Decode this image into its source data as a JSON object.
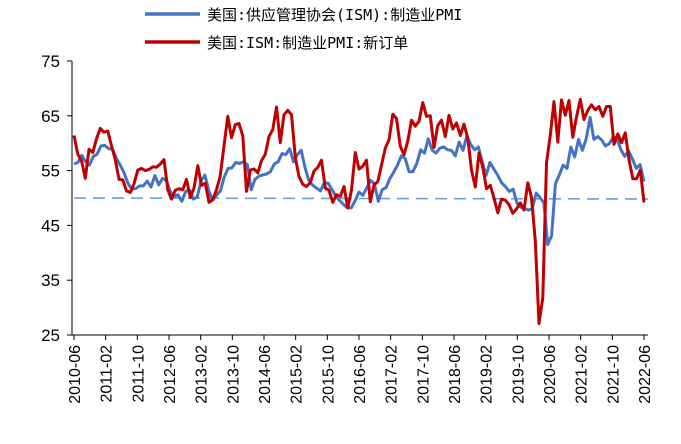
{
  "chart_data": {
    "type": "line",
    "title": "",
    "xlabel": "",
    "ylabel": "",
    "ylim": [
      25,
      75
    ],
    "yticks": [
      25,
      35,
      45,
      55,
      65,
      75
    ],
    "x_tick_labels": [
      "2010-06",
      "2011-02",
      "2011-10",
      "2012-06",
      "2013-02",
      "2013-10",
      "2014-06",
      "2015-02",
      "2015-10",
      "2016-06",
      "2017-02",
      "2017-10",
      "2018-06",
      "2019-02",
      "2019-10",
      "2020-06",
      "2021-02",
      "2021-10",
      "2022-06"
    ],
    "x_start": "2010-06",
    "x_end": "2022-06",
    "reference_line": {
      "value": 50,
      "style": "dashed",
      "color": "#6699cc"
    },
    "legend_position": "top",
    "series": [
      {
        "name": "美国:供应管理协会(ISM):制造业PMI",
        "color": "#4472C4",
        "values": [
          56.2,
          56.5,
          57.8,
          56.6,
          56.0,
          57.6,
          58.0,
          59.5,
          59.6,
          59.0,
          58.9,
          57.2,
          56.0,
          54.6,
          52.7,
          51.6,
          51.7,
          52.2,
          52.2,
          53.1,
          52.0,
          54.1,
          52.4,
          53.6,
          53.2,
          51.2,
          50.3,
          50.6,
          49.4,
          51.2,
          51.5,
          49.8,
          50.2,
          53.1,
          54.2,
          51.3,
          49.6,
          50.5,
          51.3,
          53.8,
          55.4,
          55.5,
          56.5,
          56.3,
          56.6,
          56.1,
          51.5,
          53.4,
          54.0,
          54.2,
          54.4,
          54.8,
          56.2,
          56.6,
          58.1,
          57.9,
          59.0,
          56.6,
          57.9,
          58.7,
          55.5,
          53.2,
          52.3,
          51.8,
          51.3,
          52.8,
          52.7,
          51.5,
          50.3,
          49.5,
          48.8,
          48.2,
          48.2,
          49.5,
          51.1,
          50.5,
          51.8,
          53.2,
          52.6,
          49.4,
          51.5,
          51.9,
          53.5,
          54.7,
          56.0,
          57.7,
          57.2,
          54.8,
          54.8,
          56.3,
          58.8,
          58.2,
          60.8,
          58.7,
          58.2,
          59.1,
          59.3,
          58.8,
          58.7,
          57.7,
          60.2,
          58.7,
          61.3,
          59.8,
          58.8,
          59.3,
          56.6,
          54.1,
          56.5,
          55.3,
          54.2,
          52.8,
          52.1,
          51.2,
          51.6,
          49.1,
          48.3,
          48.1,
          47.8,
          48.1,
          50.9,
          50.1,
          49.1,
          41.5,
          43.1,
          52.6,
          54.2,
          56.0,
          55.4,
          59.3,
          57.5,
          60.7,
          58.7,
          60.8,
          64.7,
          60.7,
          61.2,
          60.6,
          59.5,
          59.9,
          61.1,
          60.8,
          58.8,
          57.6,
          58.6,
          57.1,
          55.4,
          56.1,
          53.0
        ]
      },
      {
        "name": "美国:ISM:制造业PMI:新订单",
        "color": "#C00000",
        "values": [
          61.4,
          58.0,
          56.8,
          53.6,
          58.9,
          58.3,
          60.8,
          62.7,
          62.0,
          62.2,
          59.5,
          57.0,
          53.4,
          53.3,
          51.3,
          51.0,
          52.6,
          55.1,
          55.4,
          55.0,
          55.2,
          55.7,
          55.6,
          56.2,
          57.0,
          51.5,
          49.8,
          51.4,
          51.7,
          51.5,
          53.4,
          50.1,
          51.8,
          55.9,
          52.3,
          52.7,
          49.2,
          49.7,
          51.5,
          54.0,
          59.5,
          64.9,
          61.0,
          63.4,
          63.6,
          61.3,
          51.2,
          55.1,
          55.3,
          54.6,
          56.8,
          58.0,
          61.2,
          62.5,
          66.6,
          60.1,
          65.2,
          66.0,
          65.2,
          57.4,
          53.9,
          52.5,
          52.1,
          52.8,
          54.9,
          55.6,
          56.9,
          51.8,
          51.4,
          49.2,
          50.6,
          50.3,
          52.1,
          48.2,
          51.5,
          58.3,
          55.3,
          55.8,
          56.9,
          49.3,
          52.4,
          53.0,
          56.0,
          59.1,
          60.6,
          65.3,
          64.5,
          59.5,
          57.9,
          60.4,
          64.2,
          63.1,
          64.0,
          67.4,
          64.9,
          65.0,
          59.2,
          63.2,
          64.2,
          61.2,
          65.1,
          62.6,
          63.7,
          61.4,
          63.5,
          60.9,
          55.1,
          52.0,
          58.2,
          55.6,
          51.7,
          52.3,
          50.0,
          47.3,
          49.8,
          49.6,
          48.8,
          47.2,
          48.0,
          49.1,
          47.8,
          52.8,
          50.1,
          42.2,
          27.1,
          31.8,
          56.4,
          61.5,
          67.6,
          60.2,
          67.9,
          65.1,
          67.8,
          61.1,
          64.8,
          68.0,
          64.3,
          66.0,
          67.0,
          66.1,
          66.7,
          64.9,
          66.7,
          66.7,
          59.8,
          61.7,
          60.1,
          61.9,
          57.0,
          53.5,
          53.5,
          55.1,
          49.2
        ]
      }
    ]
  }
}
